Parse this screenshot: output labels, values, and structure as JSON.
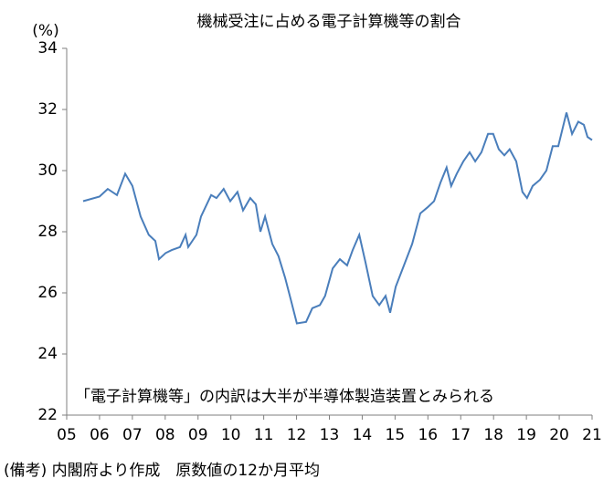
{
  "chart_data": {
    "type": "line",
    "title": "機械受注に占める電子計算機等の割合",
    "y_unit": "(%)",
    "annotation": "「電子計算機等」の内訳は大半が半導体製造装置とみられる",
    "note": "(備考) 内閣府より作成　原数値の12か月平均",
    "color": "#4a7ebb",
    "x": [
      2005.5,
      2006.0,
      2006.25,
      2006.53,
      2006.78,
      2007.0,
      2007.25,
      2007.5,
      2007.7,
      2007.81,
      2008.01,
      2008.2,
      2008.45,
      2008.62,
      2008.7,
      2008.95,
      2009.09,
      2009.4,
      2009.56,
      2009.78,
      2009.98,
      2010.2,
      2010.37,
      2010.59,
      2010.76,
      2010.9,
      2011.04,
      2011.26,
      2011.45,
      2011.65,
      2011.82,
      2012.01,
      2012.29,
      2012.48,
      2012.71,
      2012.87,
      2013.1,
      2013.32,
      2013.54,
      2013.71,
      2013.91,
      2014.1,
      2014.32,
      2014.52,
      2014.71,
      2014.85,
      2015.02,
      2015.27,
      2015.52,
      2015.77,
      2015.99,
      2016.19,
      2016.38,
      2016.57,
      2016.71,
      2016.88,
      2017.08,
      2017.27,
      2017.44,
      2017.63,
      2017.83,
      2017.99,
      2018.16,
      2018.33,
      2018.49,
      2018.69,
      2018.88,
      2019.02,
      2019.19,
      2019.41,
      2019.61,
      2019.8,
      2019.97,
      2020.22,
      2020.39,
      2020.58,
      2020.75,
      2020.86,
      2021.0
    ],
    "values": [
      29.0,
      29.15,
      29.4,
      29.2,
      29.9,
      29.5,
      28.5,
      27.9,
      27.7,
      27.1,
      27.3,
      27.4,
      27.5,
      27.9,
      27.5,
      27.9,
      28.5,
      29.2,
      29.1,
      29.4,
      29.0,
      29.3,
      28.7,
      29.1,
      28.9,
      28.0,
      28.5,
      27.6,
      27.2,
      26.5,
      25.8,
      25.0,
      25.05,
      25.5,
      25.6,
      25.9,
      26.8,
      27.1,
      26.9,
      27.4,
      27.9,
      27.0,
      25.9,
      25.6,
      25.9,
      25.35,
      26.2,
      26.9,
      27.6,
      28.6,
      28.8,
      29.0,
      29.6,
      30.1,
      29.5,
      29.9,
      30.3,
      30.6,
      30.3,
      30.6,
      31.2,
      31.2,
      30.7,
      30.5,
      30.7,
      30.3,
      29.3,
      29.1,
      29.5,
      29.7,
      30.0,
      30.8,
      30.8,
      31.9,
      31.2,
      31.6,
      31.5,
      31.1,
      31.0
    ],
    "xlim": [
      2005,
      2021
    ],
    "xticks": [
      {
        "value": 2005,
        "label": "05"
      },
      {
        "value": 2006,
        "label": "06"
      },
      {
        "value": 2007,
        "label": "07"
      },
      {
        "value": 2008,
        "label": "08"
      },
      {
        "value": 2009,
        "label": "09"
      },
      {
        "value": 2010,
        "label": "10"
      },
      {
        "value": 2011,
        "label": "11"
      },
      {
        "value": 2012,
        "label": "12"
      },
      {
        "value": 2013,
        "label": "13"
      },
      {
        "value": 2014,
        "label": "14"
      },
      {
        "value": 2015,
        "label": "15"
      },
      {
        "value": 2016,
        "label": "16"
      },
      {
        "value": 2017,
        "label": "17"
      },
      {
        "value": 2018,
        "label": "18"
      },
      {
        "value": 2019,
        "label": "19"
      },
      {
        "value": 2020,
        "label": "20"
      },
      {
        "value": 2021,
        "label": "21"
      }
    ],
    "ylim": [
      22,
      34
    ],
    "yticks": [
      22,
      24,
      26,
      28,
      30,
      32,
      34
    ]
  }
}
